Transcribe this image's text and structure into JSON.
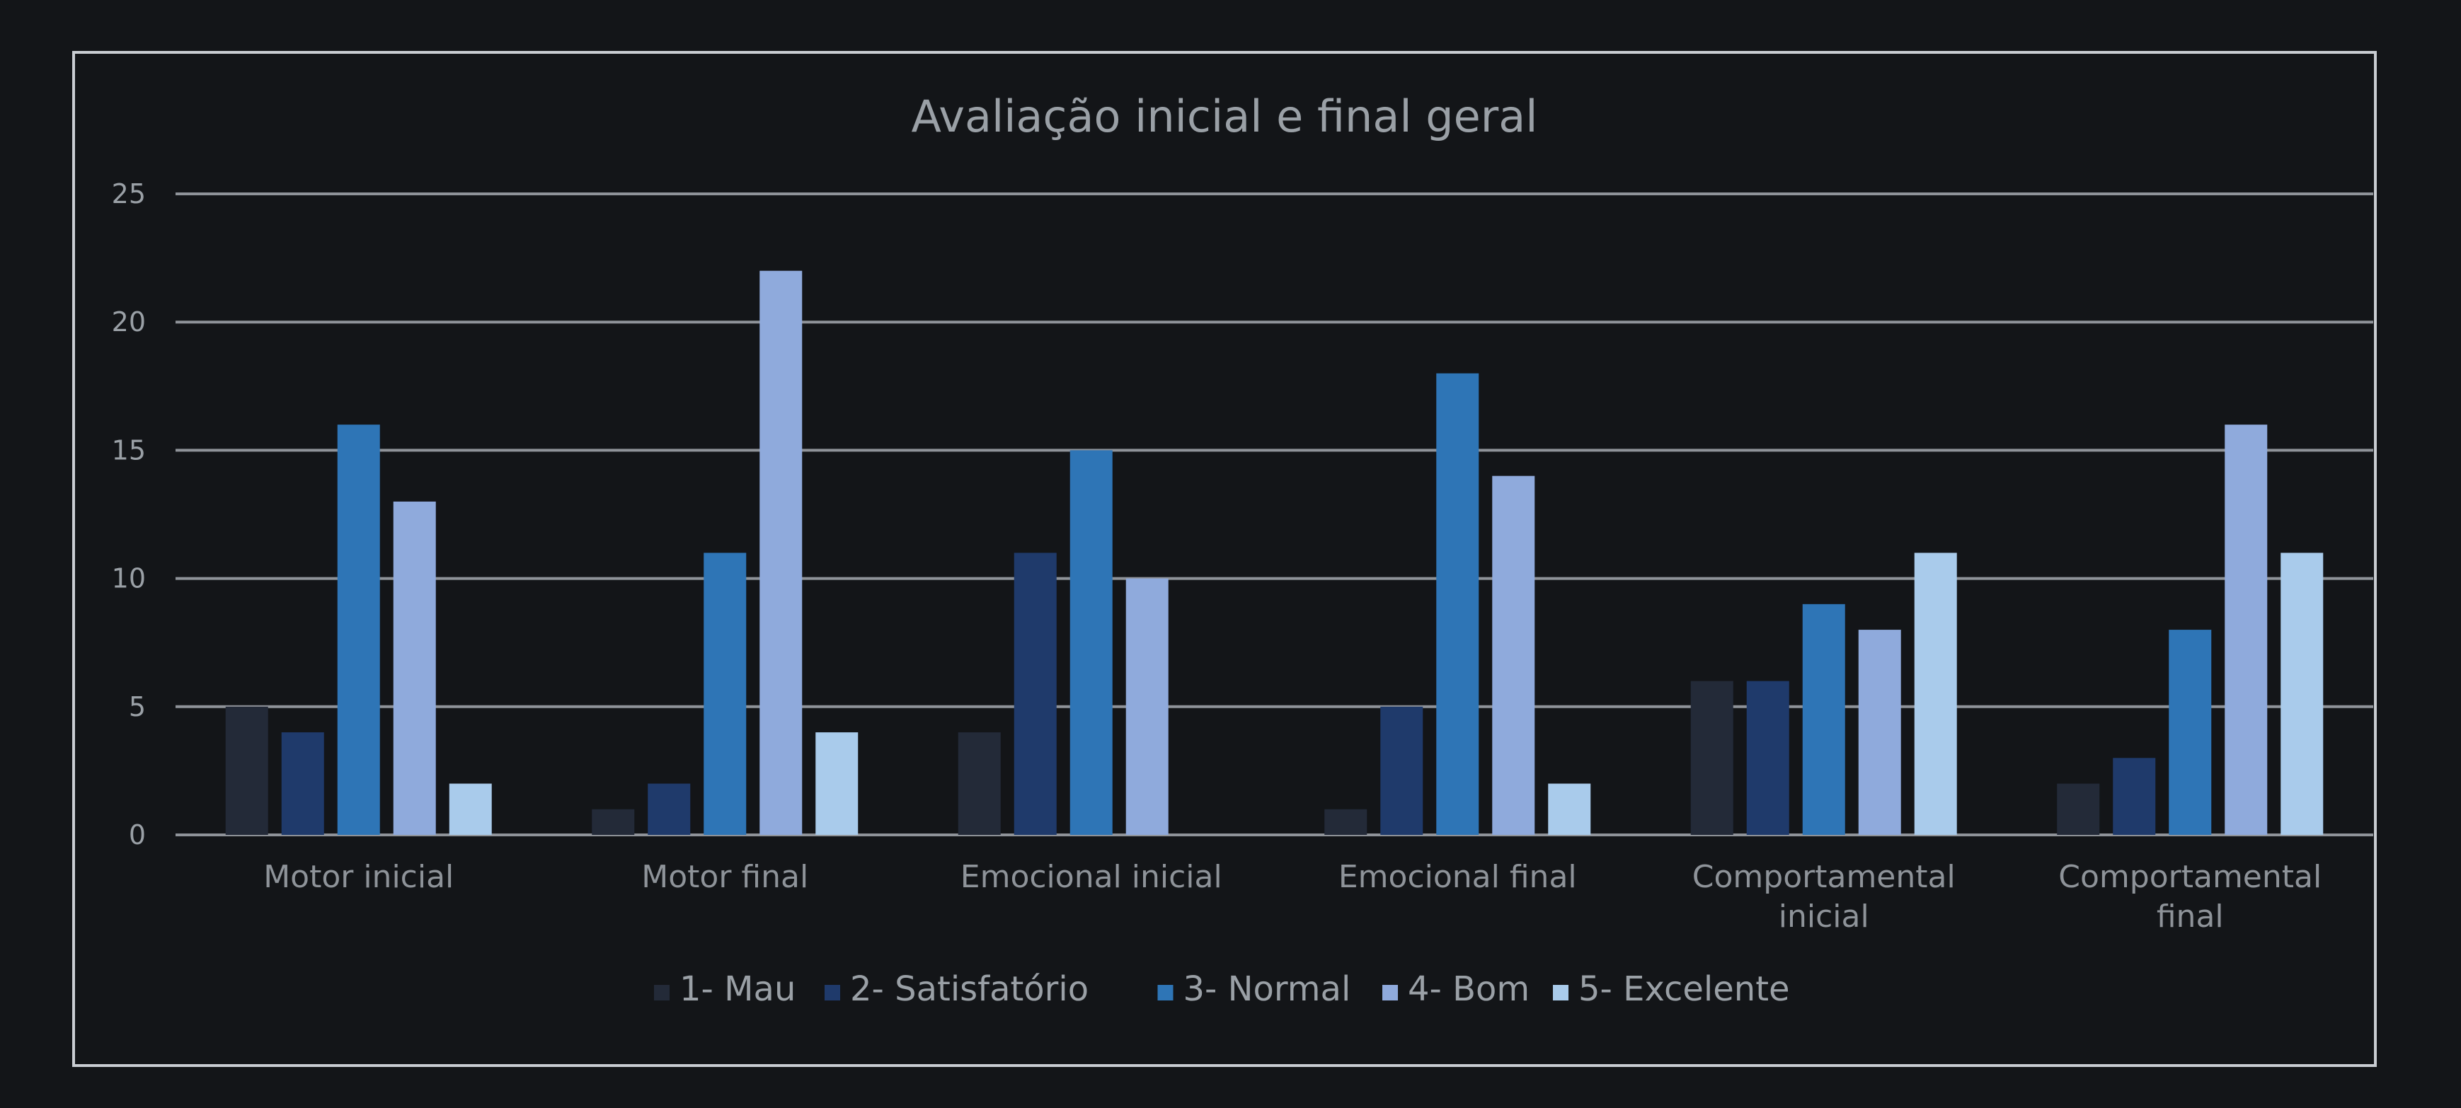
{
  "chart_data": {
    "type": "bar",
    "title": "Avaliação inicial e final geral",
    "categories": [
      [
        "Motor inicial"
      ],
      [
        "Motor final"
      ],
      [
        "Emocional inicial"
      ],
      [
        "Emocional final"
      ],
      [
        "Comportamental",
        "inicial"
      ],
      [
        "Comportamental",
        "final"
      ]
    ],
    "series": [
      {
        "name": "1- Mau",
        "color": "#232a38",
        "values": [
          5,
          1,
          4,
          1,
          6,
          2
        ]
      },
      {
        "name": "2- Satisfatório",
        "color": "#1f3a6b",
        "values": [
          4,
          2,
          11,
          5,
          6,
          3
        ]
      },
      {
        "name": "3- Normal",
        "color": "#2e75b6",
        "values": [
          16,
          11,
          15,
          18,
          9,
          8
        ]
      },
      {
        "name": "4- Bom",
        "color": "#8faadc",
        "values": [
          13,
          22,
          10,
          14,
          8,
          16
        ]
      },
      {
        "name": "5- Excelente",
        "color": "#a9cbeb",
        "values": [
          2,
          4,
          0,
          2,
          11,
          11
        ]
      }
    ],
    "ylim": [
      0,
      25
    ],
    "yticks": [
      0,
      5,
      10,
      15,
      20,
      25
    ],
    "grid": true,
    "legend": "bottom",
    "xlabel": "",
    "ylabel": ""
  }
}
